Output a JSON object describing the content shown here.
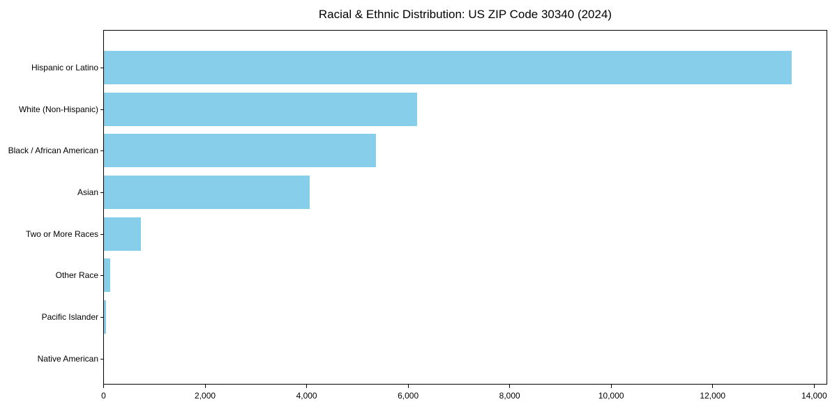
{
  "chart_data": {
    "type": "bar",
    "orientation": "horizontal",
    "title": "Racial & Ethnic Distribution: US ZIP Code 30340 (2024)",
    "categories": [
      "Hispanic or Latino",
      "White (Non-Hispanic)",
      "Black / African American",
      "Asian",
      "Two or More Races",
      "Other Race",
      "Pacific Islander",
      "Native American"
    ],
    "values": [
      13560,
      6170,
      5370,
      4060,
      730,
      120,
      45,
      0
    ],
    "xlabel": "",
    "ylabel": "",
    "xlim": [
      0,
      14250
    ],
    "x_ticks": [
      0,
      2000,
      4000,
      6000,
      8000,
      10000,
      12000,
      14000
    ],
    "x_tick_labels": [
      "0",
      "2,000",
      "4,000",
      "6,000",
      "8,000",
      "10,000",
      "12,000",
      "14,000"
    ],
    "bar_color": "#87CEEB",
    "frame_color": "#000000",
    "text_color": "#000000",
    "grid": false,
    "legend": null
  }
}
